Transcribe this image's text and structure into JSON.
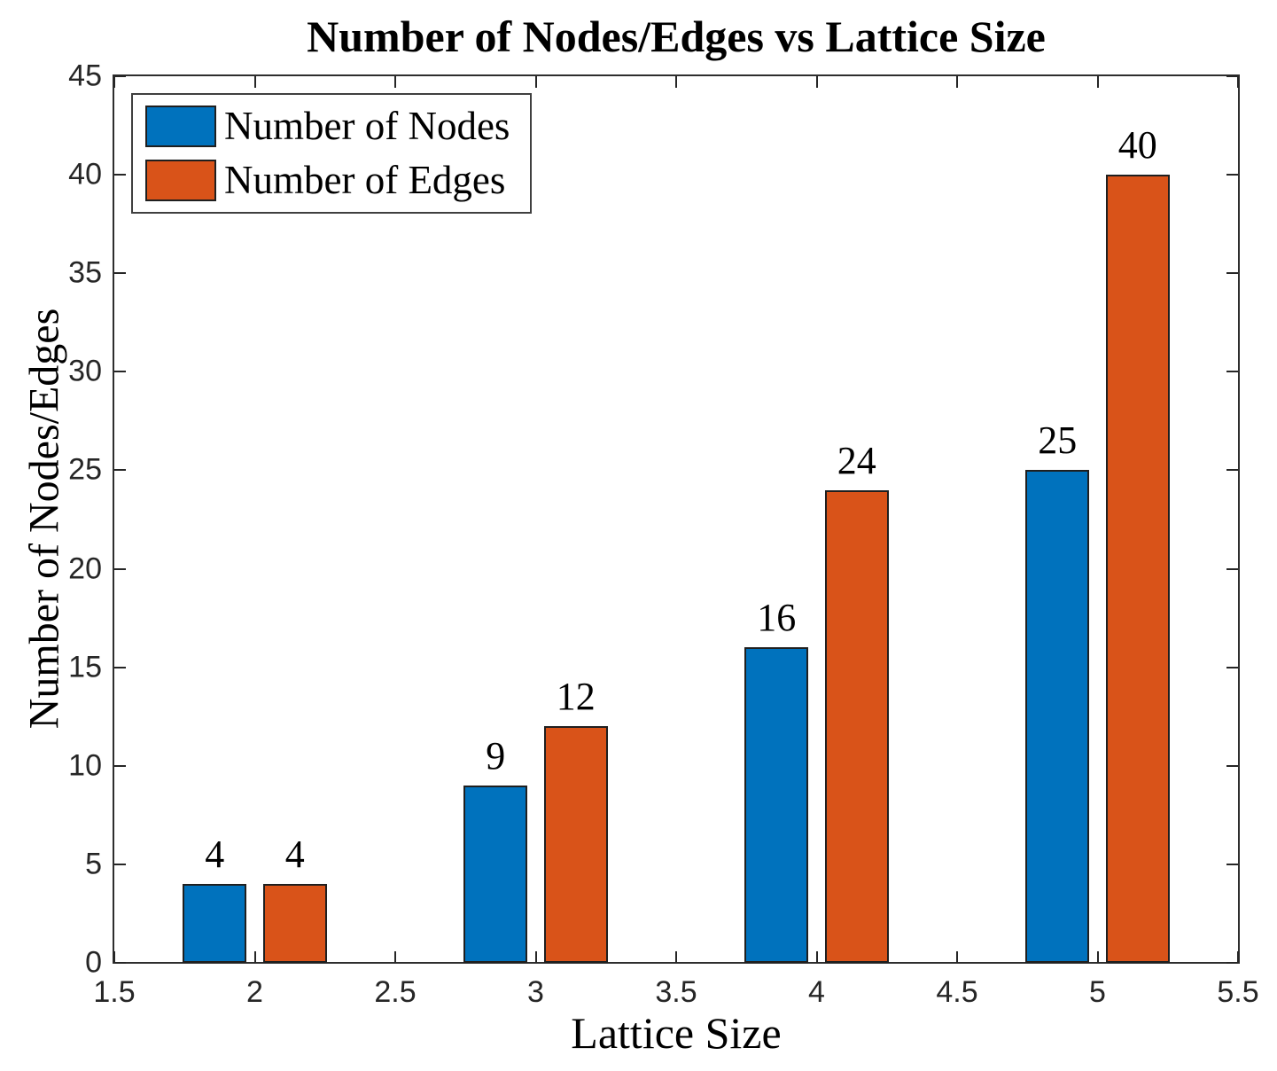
{
  "figure": {
    "background": "#ffffff"
  },
  "chart_data": {
    "type": "bar",
    "title": "Number of Nodes/Edges vs Lattice Size",
    "xlabel": "Lattice Size",
    "ylabel": "Number of Nodes/Edges",
    "categories": [
      2,
      3,
      4,
      5
    ],
    "series": [
      {
        "name": "Number of Nodes",
        "color": "#0072BD",
        "values": [
          4,
          9,
          16,
          25
        ]
      },
      {
        "name": "Number of Edges",
        "color": "#D95319",
        "values": [
          4,
          12,
          24,
          40
        ]
      }
    ],
    "bar_value_labels": [
      [
        4,
        9,
        16,
        25
      ],
      [
        4,
        12,
        24,
        40
      ]
    ],
    "xlim": [
      1.5,
      5.5
    ],
    "ylim": [
      0,
      45
    ],
    "x_ticks": [
      1.5,
      2,
      2.5,
      3,
      3.5,
      4,
      4.5,
      5,
      5.5
    ],
    "x_tick_labels": [
      "1.5",
      "2",
      "2.5",
      "3",
      "3.5",
      "4",
      "4.5",
      "5",
      "5.5"
    ],
    "y_ticks": [
      0,
      5,
      10,
      15,
      20,
      25,
      30,
      35,
      40,
      45
    ],
    "y_tick_labels": [
      "0",
      "5",
      "10",
      "15",
      "20",
      "25",
      "30",
      "35",
      "40",
      "45"
    ],
    "grid": false,
    "legend_position": "top-left",
    "bar_group_offset": 0.1429,
    "bar_width_units": 0.2286,
    "colors": {
      "axis": "#2e2e2e",
      "tick": "#262626",
      "tick_label": "#262626",
      "bar_edge": "#1f1f1f",
      "legend_border": "#3f3f3f",
      "text": "#000000"
    }
  }
}
